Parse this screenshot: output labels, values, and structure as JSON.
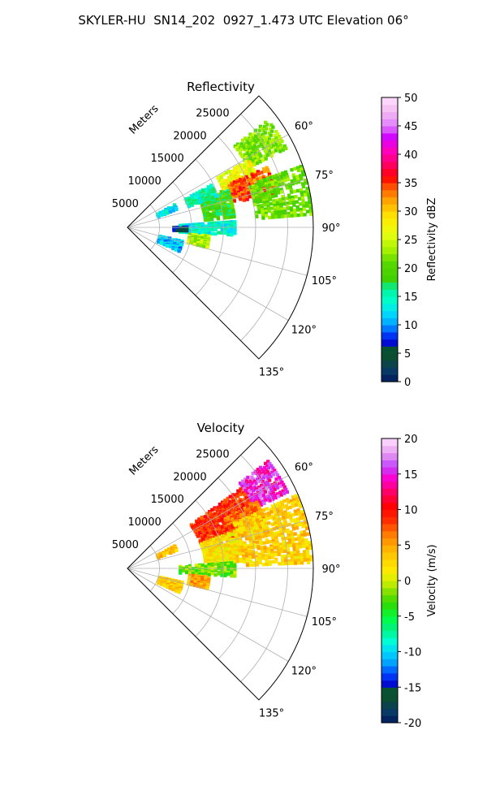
{
  "figure_title": "SKYLER-HU  SN14_202  0927_1.473 UTC Elevation 06°",
  "chart_data": [
    {
      "type": "polar-sector-heatmap",
      "title": "Reflectivity",
      "radial_label": "Meters",
      "radial_ticks": [
        "5000",
        "10000",
        "15000",
        "20000",
        "25000"
      ],
      "angle_ticks": [
        "60°",
        "75°",
        "90°",
        "105°",
        "120°",
        "135°"
      ],
      "angle_range_deg": [
        45,
        135
      ],
      "range_max_m": 29000,
      "grid": true,
      "colorbar": {
        "label": "Reflectivity dBZ",
        "range": [
          0,
          50
        ],
        "ticks": [
          "0",
          "5",
          "10",
          "15",
          "20",
          "25",
          "30",
          "35",
          "40",
          "45",
          "50"
        ]
      },
      "echo_regions": [
        {
          "az": [
            52,
            63
          ],
          "r": [
            21000,
            28000
          ],
          "value": 22
        },
        {
          "az": [
            60,
            68
          ],
          "r": [
            16000,
            22000
          ],
          "value": 27
        },
        {
          "az": [
            66,
            76
          ],
          "r": [
            17000,
            24000
          ],
          "value": 34
        },
        {
          "az": [
            70,
            86
          ],
          "r": [
            20000,
            29000
          ],
          "value": 21
        },
        {
          "az": [
            68,
            84
          ],
          "r": [
            12000,
            17000
          ],
          "value": 19
        },
        {
          "az": [
            62,
            70
          ],
          "r": [
            10000,
            15000
          ],
          "value": 15
        },
        {
          "az": [
            62,
            68
          ],
          "r": [
            5000,
            8500
          ],
          "value": 13
        },
        {
          "az": [
            86,
            94
          ],
          "r": [
            8000,
            17000
          ],
          "value": 14
        },
        {
          "az": [
            88,
            92
          ],
          "r": [
            7000,
            9500
          ],
          "value": 6
        },
        {
          "az": [
            95,
            104
          ],
          "r": [
            9500,
            13000
          ],
          "value": 24
        },
        {
          "az": [
            103,
            114
          ],
          "r": [
            5000,
            9000
          ],
          "value": 11
        }
      ]
    },
    {
      "type": "polar-sector-heatmap",
      "title": "Velocity",
      "radial_label": "Meters",
      "radial_ticks": [
        "5000",
        "10000",
        "15000",
        "20000",
        "25000"
      ],
      "angle_ticks": [
        "60°",
        "75°",
        "90°",
        "105°",
        "120°",
        "135°"
      ],
      "angle_range_deg": [
        45,
        135
      ],
      "range_max_m": 29000,
      "grid": true,
      "colorbar": {
        "label": "Velocity (m/s)",
        "range": [
          -20,
          20
        ],
        "ticks": [
          "-20",
          "-15",
          "-10",
          "-5",
          "0",
          "5",
          "10",
          "15",
          "20"
        ]
      },
      "echo_regions": [
        {
          "az": [
            52,
            64
          ],
          "r": [
            22000,
            28000
          ],
          "value": 15
        },
        {
          "az": [
            54,
            70
          ],
          "r": [
            12000,
            22000
          ],
          "value": 9
        },
        {
          "az": [
            62,
            72
          ],
          "r": [
            17000,
            23000
          ],
          "value": 7
        },
        {
          "az": [
            66,
            88
          ],
          "r": [
            18000,
            29000
          ],
          "value": 3
        },
        {
          "az": [
            70,
            86
          ],
          "r": [
            12000,
            18000
          ],
          "value": 2
        },
        {
          "az": [
            62,
            68
          ],
          "r": [
            5000,
            8500
          ],
          "value": 4
        },
        {
          "az": [
            86,
            94
          ],
          "r": [
            8000,
            17000
          ],
          "value": -2
        },
        {
          "az": [
            95,
            104
          ],
          "r": [
            9500,
            13000
          ],
          "value": 5
        },
        {
          "az": [
            103,
            114
          ],
          "r": [
            5000,
            9000
          ],
          "value": 3
        }
      ]
    }
  ]
}
